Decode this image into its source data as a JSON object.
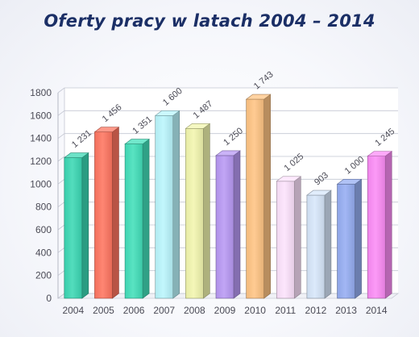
{
  "chart_data": {
    "type": "bar",
    "title": "Oferty pracy w latach 2004 – 2014",
    "xlabel": "",
    "ylabel": "",
    "categories": [
      "2004",
      "2005",
      "2006",
      "2007",
      "2008",
      "2009",
      "2010",
      "2011",
      "2012",
      "2013",
      "2014"
    ],
    "values": [
      1231,
      1456,
      1351,
      1600,
      1487,
      1250,
      1743,
      1025,
      903,
      1000,
      1245
    ],
    "data_labels": [
      "1 231",
      "1 456",
      "1 351",
      "1 600",
      "1 487",
      "1 250",
      "1 743",
      "1 025",
      "903",
      "1 000",
      "1 245"
    ],
    "ylim": [
      0,
      1800
    ],
    "yticks": [
      0,
      200,
      400,
      600,
      800,
      1000,
      1200,
      1400,
      1600,
      1800
    ],
    "grid": true,
    "legend": "none",
    "bar_style": "3d-column",
    "colors": [
      "#3bd8b4",
      "#ff7560",
      "#42dfba",
      "#baf6fd",
      "#f2f6ae",
      "#b899f4",
      "#ffc483",
      "#fde3fd",
      "#d7e7fb",
      "#95adf2",
      "#fc8cf6"
    ]
  }
}
